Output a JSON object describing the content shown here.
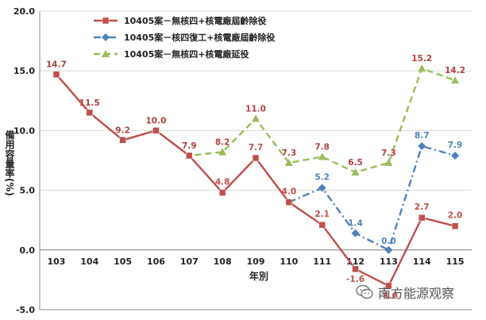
{
  "chart_data": {
    "type": "line",
    "xlabel": "年別",
    "ylabel": "備用容量率(%)",
    "categories": [
      "103",
      "104",
      "105",
      "106",
      "107",
      "108",
      "109",
      "110",
      "111",
      "112",
      "113",
      "114",
      "115"
    ],
    "ylim": [
      -5.0,
      20.0
    ],
    "yticks": [
      "20.0",
      "15.0",
      "10.0",
      "5.0",
      "0.0",
      "-5.0"
    ],
    "grid": true,
    "legend_position": "top-center",
    "series": [
      {
        "name": "10405案－無核四+核電廠屆齡除役",
        "color": "#c0504d",
        "style": "solid-square",
        "values": [
          14.7,
          11.5,
          9.2,
          10.0,
          7.9,
          4.8,
          7.7,
          4.0,
          2.1,
          -1.6,
          -3.0,
          2.7,
          2.0
        ],
        "labels": [
          "",
          "",
          "",
          "",
          "",
          "4.8",
          "7.7",
          "4.0",
          "2.1",
          "-1.6",
          "-3.0",
          "2.7",
          "2.0"
        ]
      },
      {
        "name": "10405案－核四復工+核電廠屆齡除役",
        "color": "#4f81bd",
        "style": "dashdot-diamond",
        "values": [
          null,
          null,
          null,
          null,
          null,
          null,
          null,
          4.0,
          5.2,
          1.4,
          0.0,
          8.7,
          7.9
        ],
        "labels": [
          "",
          "",
          "",
          "",
          "",
          "",
          "",
          "",
          "5.2",
          "1.4",
          "0.0",
          "8.7",
          "7.9"
        ]
      },
      {
        "name": "10405案－無核四+核電廠延役",
        "color": "#9bbb59",
        "style": "dashed-triangle",
        "values": [
          14.7,
          11.5,
          9.2,
          10.0,
          7.9,
          8.2,
          11.0,
          7.3,
          7.8,
          6.5,
          7.3,
          15.2,
          14.2
        ],
        "labels": [
          "14.7",
          "11.5",
          "9.2",
          "10.0",
          "7.9",
          "8.2",
          "11.0",
          "7.3",
          "7.8",
          "6.5",
          "7.3",
          "15.2",
          "14.2"
        ]
      }
    ]
  },
  "watermark": {
    "text": "南方能源观察",
    "icon": "wechat-bubble-icon"
  }
}
